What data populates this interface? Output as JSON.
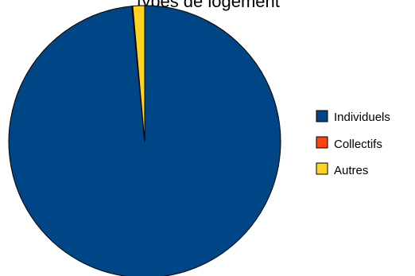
{
  "chart_data": {
    "type": "pie",
    "title": "types de logement",
    "categories": [
      "Individuels",
      "Collectifs",
      "Autres"
    ],
    "values": [
      98.5,
      0.1,
      1.4
    ],
    "colors": [
      "#004586",
      "#ff420e",
      "#ffd320"
    ],
    "start": "12 o'clock",
    "direction": "clockwise",
    "legend_position": "right"
  }
}
